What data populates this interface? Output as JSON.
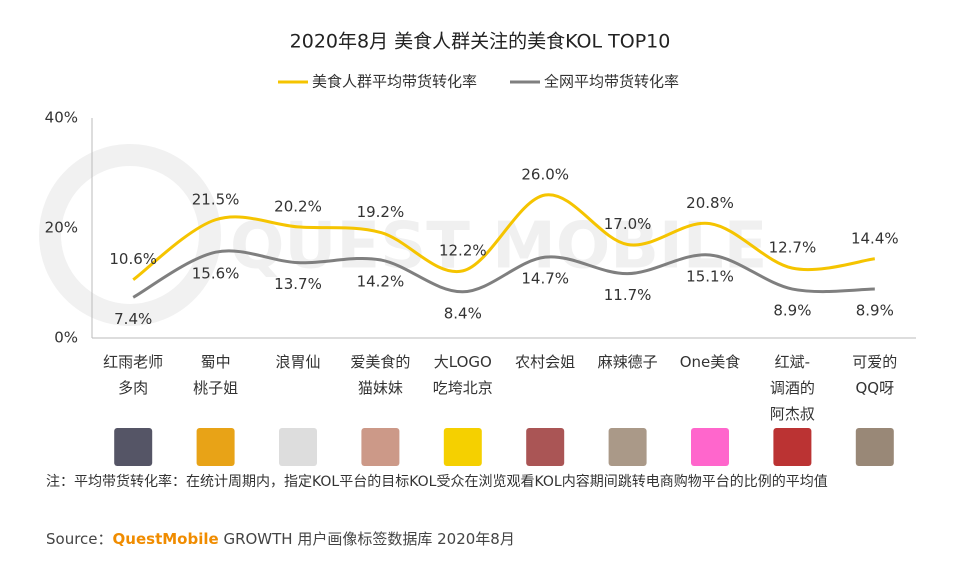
{
  "chart_data": {
    "type": "line",
    "title": "2020年8月 美食人群关注的美食KOL  TOP10",
    "watermark": "QUEST MOBILE",
    "categories": [
      "红雨老师\n多肉",
      "蜀中\n桃子姐",
      "浪胃仙",
      "爱美食的\n猫妹妹",
      "大LOGO\n吃垮北京",
      "农村会姐",
      "麻辣德子",
      "One美食",
      "红斌-\n调酒的\n阿杰叔",
      "可爱的\nQQ呀"
    ],
    "series": [
      {
        "name": "美食人群平均带货转化率",
        "color": "#f5c400",
        "values": [
          10.6,
          21.5,
          20.2,
          19.2,
          12.2,
          26.0,
          17.0,
          20.8,
          12.7,
          14.4
        ],
        "value_labels": [
          "10.6%",
          "21.5%",
          "20.2%",
          "19.2%",
          "12.2%",
          "26.0%",
          "17.0%",
          "20.8%",
          "12.7%",
          "14.4%"
        ]
      },
      {
        "name": "全网平均带货转化率",
        "color": "#7f7f7f",
        "values": [
          7.4,
          15.6,
          13.7,
          14.2,
          8.4,
          14.7,
          11.7,
          15.1,
          8.9,
          8.9
        ],
        "value_labels": [
          "7.4%",
          "15.6%",
          "13.7%",
          "14.2%",
          "8.4%",
          "14.7%",
          "11.7%",
          "15.1%",
          "8.9%",
          "8.9%"
        ]
      }
    ],
    "ylim": [
      0,
      40
    ],
    "yticks": [
      {
        "value": 0,
        "label": "0%"
      },
      {
        "value": 20,
        "label": "20%"
      },
      {
        "value": 40,
        "label": "40%"
      }
    ],
    "note": "注：平均带货转化率：在统计周期内，指定KOL平台的目标KOL受众在浏览观看KOL内容期间跳转电商购物平台的比例的平均值",
    "source": {
      "prefix": "Source：",
      "brand": "QuestMobile",
      "text": "GROWTH 用户画像标签数据库 2020年8月"
    }
  }
}
